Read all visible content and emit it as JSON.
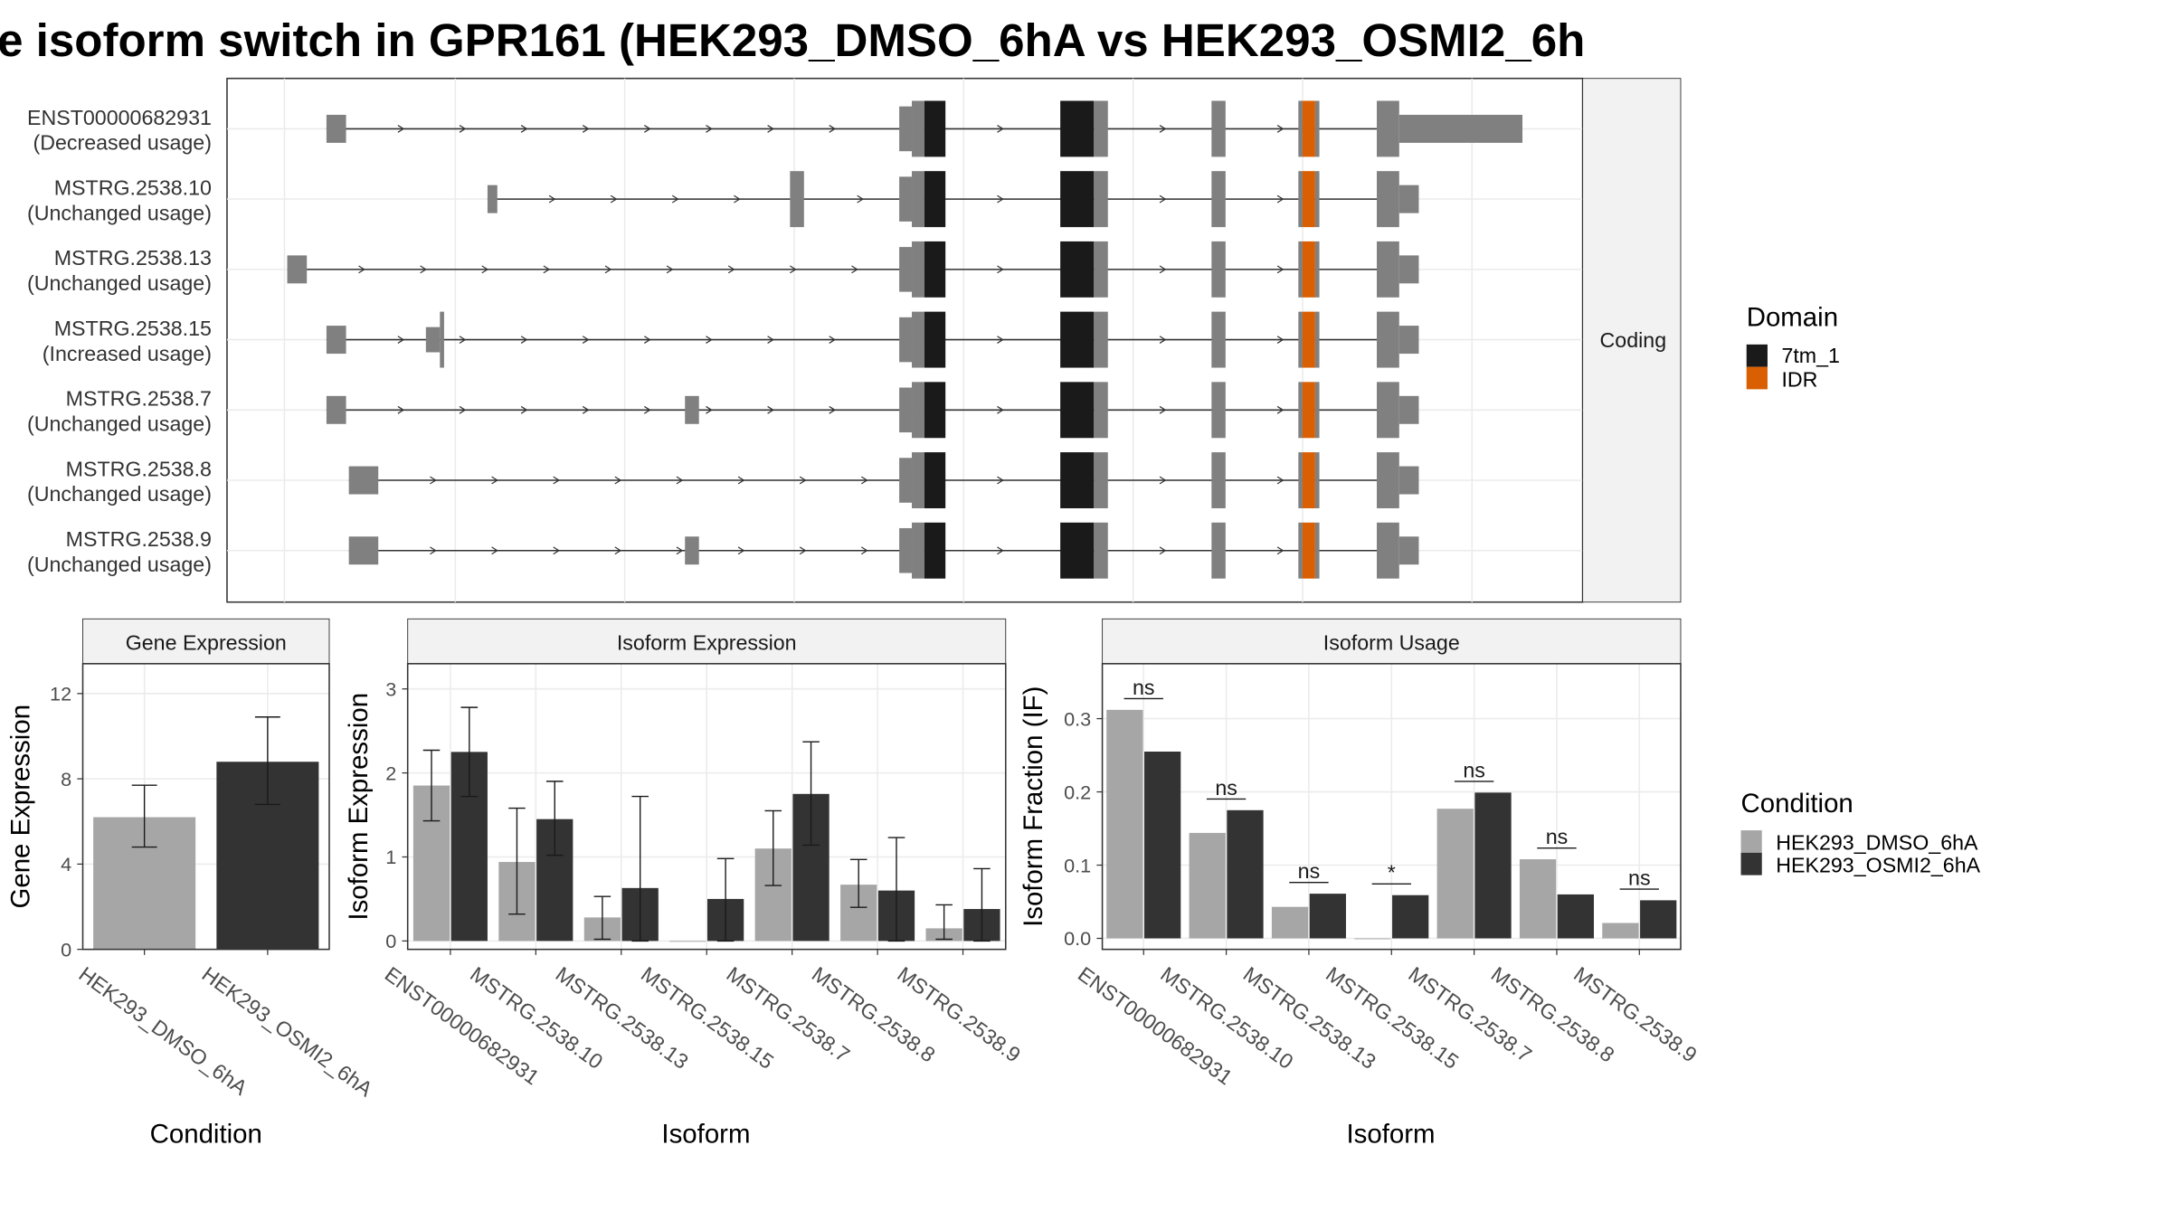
{
  "title": "e isoform switch in GPR161 (HEK293_DMSO_6hA vs HEK293_OSMI2_6h",
  "colors": {
    "dmso": "#a6a6a6",
    "osmi": "#333333",
    "utr": "#808080",
    "tm": "#1a1a1a",
    "idr": "#d95f02"
  },
  "structure": {
    "facet_label": "Coding",
    "legend_title": "Domain",
    "legend_items": [
      {
        "label": "7tm_1",
        "color": "#1a1a1a"
      },
      {
        "label": "IDR",
        "color": "#d95f02"
      }
    ],
    "isoforms": [
      {
        "name": "ENST00000682931",
        "usage": "(Decreased usage)",
        "first_exon": "a",
        "alt_exon": null,
        "long_tail": true
      },
      {
        "name": "MSTRG.2538.10",
        "usage": "(Unchanged usage)",
        "first_exon": "c",
        "alt_exon": "e",
        "long_tail": false
      },
      {
        "name": "MSTRG.2538.13",
        "usage": "(Unchanged usage)",
        "first_exon": "f",
        "alt_exon": null,
        "long_tail": false
      },
      {
        "name": "MSTRG.2538.15",
        "usage": "(Increased usage)",
        "first_exon": "a",
        "alt_exon": "g",
        "long_tail": false
      },
      {
        "name": "MSTRG.2538.7",
        "usage": "(Unchanged usage)",
        "first_exon": "a",
        "alt_exon": "d",
        "long_tail": false
      },
      {
        "name": "MSTRG.2538.8",
        "usage": "(Unchanged usage)",
        "first_exon": "b",
        "alt_exon": null,
        "long_tail": false
      },
      {
        "name": "MSTRG.2538.9",
        "usage": "(Unchanged usage)",
        "first_exon": "b",
        "alt_exon": "d",
        "long_tail": false
      }
    ]
  },
  "chart_data": [
    {
      "type": "bar",
      "title": "Gene Expression",
      "xlabel": "Condition",
      "ylabel": "Gene Expression",
      "ylim": [
        0,
        13.4
      ],
      "yticks": [
        0,
        4,
        8,
        12
      ],
      "categories": [
        "HEK293_DMSO_6hA",
        "HEK293_OSMI2_6hA"
      ],
      "values": [
        6.2,
        8.8
      ],
      "err_low": [
        4.8,
        6.8
      ],
      "err_high": [
        7.7,
        10.9
      ]
    },
    {
      "type": "bar",
      "title": "Isoform Expression",
      "xlabel": "Isoform",
      "ylabel": "Isoform Expression",
      "ylim": [
        -0.1,
        3.3
      ],
      "yticks": [
        0,
        1,
        2,
        3
      ],
      "categories": [
        "ENST00000682931",
        "MSTRG.2538.10",
        "MSTRG.2538.13",
        "MSTRG.2538.15",
        "MSTRG.2538.7",
        "MSTRG.2538.8",
        "MSTRG.2538.9"
      ],
      "series": [
        {
          "name": "HEK293_DMSO_6hA",
          "values": [
            1.85,
            0.94,
            0.28,
            0.0,
            1.1,
            0.67,
            0.15
          ],
          "err_low": [
            1.43,
            0.32,
            0.02,
            0.0,
            0.66,
            0.4,
            0.02
          ],
          "err_high": [
            2.27,
            1.58,
            0.53,
            0.0,
            1.55,
            0.97,
            0.43
          ]
        },
        {
          "name": "HEK293_OSMI2_6hA",
          "values": [
            2.25,
            1.45,
            0.63,
            0.5,
            1.75,
            0.6,
            0.38
          ],
          "err_low": [
            1.72,
            1.02,
            0.0,
            0.0,
            1.14,
            0.0,
            0.0
          ],
          "err_high": [
            2.78,
            1.9,
            1.72,
            0.98,
            2.37,
            1.23,
            0.86
          ]
        }
      ]
    },
    {
      "type": "bar",
      "title": "Isoform Usage",
      "xlabel": "Isoform",
      "ylabel": "Isoform Fraction (IF)",
      "ylim": [
        -0.015,
        0.375
      ],
      "yticks": [
        "0.0",
        "0.1",
        "0.2",
        "0.3"
      ],
      "categories": [
        "ENST00000682931",
        "MSTRG.2538.10",
        "MSTRG.2538.13",
        "MSTRG.2538.15",
        "MSTRG.2538.7",
        "MSTRG.2538.8",
        "MSTRG.2538.9"
      ],
      "series": [
        {
          "name": "HEK293_DMSO_6hA",
          "values": [
            0.312,
            0.144,
            0.043,
            0.0,
            0.177,
            0.108,
            0.021
          ]
        },
        {
          "name": "HEK293_OSMI2_6hA",
          "values": [
            0.255,
            0.175,
            0.061,
            0.059,
            0.199,
            0.06,
            0.052
          ]
        }
      ],
      "significance": [
        "ns",
        "ns",
        "ns",
        "*",
        "ns",
        "ns",
        "ns"
      ]
    }
  ],
  "condition_legend": {
    "title": "Condition",
    "items": [
      {
        "label": "HEK293_DMSO_6hA",
        "color": "#a6a6a6"
      },
      {
        "label": "HEK293_OSMI2_6hA",
        "color": "#333333"
      }
    ]
  }
}
